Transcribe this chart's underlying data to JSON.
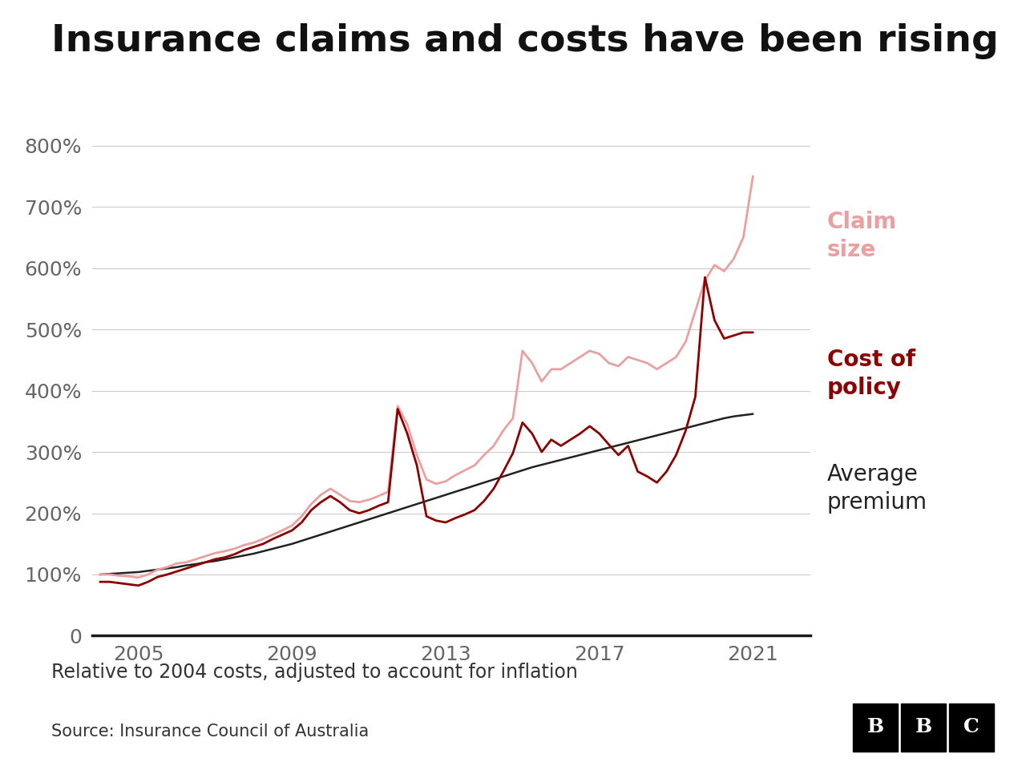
{
  "title": "Insurance claims and costs have been rising",
  "subtitle": "Relative to 2004 costs, adjusted to account for inflation",
  "source": "Source: Insurance Council of Australia",
  "title_fontsize": 34,
  "subtitle_fontsize": 17,
  "source_fontsize": 15,
  "background_color": "#ffffff",
  "claim_size_color": "#e8a0a0",
  "cost_of_policy_color": "#8b0000",
  "avg_premium_color": "#222222",
  "claim_size_label": "Claim\nsize",
  "cost_policy_label": "Cost of\npolicy",
  "avg_premium_label": "Average\npremium",
  "years": [
    2004.0,
    2004.25,
    2004.5,
    2004.75,
    2005.0,
    2005.25,
    2005.5,
    2005.75,
    2006.0,
    2006.25,
    2006.5,
    2006.75,
    2007.0,
    2007.25,
    2007.5,
    2007.75,
    2008.0,
    2008.25,
    2008.5,
    2008.75,
    2009.0,
    2009.25,
    2009.5,
    2009.75,
    2010.0,
    2010.25,
    2010.5,
    2010.75,
    2011.0,
    2011.25,
    2011.5,
    2011.75,
    2012.0,
    2012.25,
    2012.5,
    2012.75,
    2013.0,
    2013.25,
    2013.5,
    2013.75,
    2014.0,
    2014.25,
    2014.5,
    2014.75,
    2015.0,
    2015.25,
    2015.5,
    2015.75,
    2016.0,
    2016.25,
    2016.5,
    2016.75,
    2017.0,
    2017.25,
    2017.5,
    2017.75,
    2018.0,
    2018.25,
    2018.5,
    2018.75,
    2019.0,
    2019.25,
    2019.5,
    2019.75,
    2020.0,
    2020.25,
    2020.5,
    2020.75,
    2021.0
  ],
  "claim_size": [
    100,
    100,
    98,
    97,
    95,
    100,
    108,
    112,
    118,
    120,
    125,
    130,
    135,
    138,
    142,
    148,
    152,
    158,
    165,
    172,
    180,
    195,
    215,
    230,
    240,
    230,
    220,
    218,
    222,
    228,
    235,
    375,
    345,
    295,
    255,
    248,
    252,
    262,
    270,
    278,
    295,
    310,
    335,
    355,
    465,
    445,
    415,
    435,
    435,
    445,
    455,
    465,
    460,
    445,
    440,
    455,
    450,
    445,
    435,
    445,
    455,
    480,
    530,
    580,
    605,
    595,
    615,
    650,
    750
  ],
  "cost_of_policy": [
    88,
    88,
    86,
    84,
    82,
    88,
    96,
    100,
    105,
    110,
    115,
    120,
    125,
    128,
    133,
    140,
    145,
    150,
    158,
    165,
    172,
    185,
    205,
    218,
    228,
    218,
    205,
    200,
    205,
    212,
    218,
    370,
    330,
    278,
    195,
    188,
    185,
    192,
    198,
    205,
    220,
    240,
    268,
    298,
    348,
    330,
    300,
    320,
    310,
    320,
    330,
    342,
    330,
    312,
    295,
    310,
    268,
    260,
    250,
    268,
    295,
    335,
    390,
    585,
    515,
    485,
    490,
    495,
    495
  ],
  "avg_premium": [
    100,
    101,
    102,
    103,
    104,
    106,
    108,
    110,
    112,
    115,
    117,
    120,
    122,
    125,
    128,
    131,
    134,
    138,
    142,
    146,
    150,
    155,
    160,
    165,
    170,
    175,
    180,
    185,
    190,
    195,
    200,
    205,
    210,
    215,
    220,
    225,
    230,
    235,
    240,
    245,
    250,
    255,
    260,
    265,
    270,
    275,
    279,
    283,
    287,
    291,
    295,
    299,
    303,
    307,
    311,
    315,
    319,
    323,
    327,
    331,
    335,
    339,
    343,
    347,
    351,
    355,
    358,
    360,
    362
  ],
  "xlim": [
    2003.8,
    2022.5
  ],
  "ylim": [
    0,
    850
  ],
  "xticks": [
    2005,
    2009,
    2013,
    2017,
    2021
  ],
  "yticks": [
    0,
    100,
    200,
    300,
    400,
    500,
    600,
    700,
    800
  ]
}
